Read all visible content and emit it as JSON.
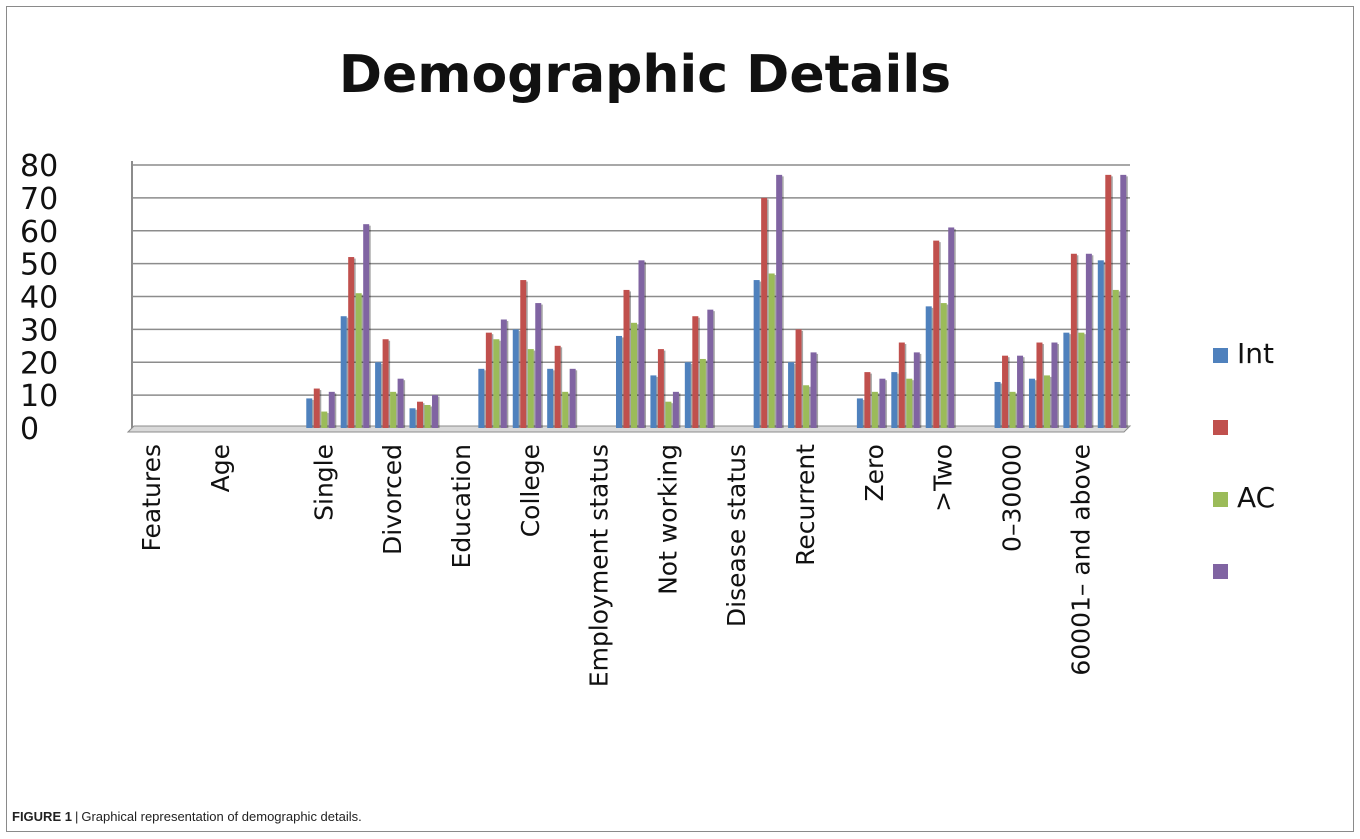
{
  "caption": {
    "label": "FIGURE 1",
    "separator": "|",
    "text": "Graphical representation of demographic details."
  },
  "chart_data": {
    "type": "bar",
    "title": "Demographic Details",
    "xlabel": "",
    "ylabel": "",
    "ylim": [
      0,
      80
    ],
    "yticks": [
      0,
      10,
      20,
      30,
      40,
      50,
      60,
      70,
      80
    ],
    "grid": true,
    "legend_position": "right",
    "categories": [
      "Features",
      "",
      "Age",
      "",
      "",
      "Single",
      "",
      "Divorced",
      "",
      "Education",
      "",
      "College",
      "",
      "Employment status",
      "",
      "Not working",
      "",
      "Disease status",
      "",
      "Recurrent",
      "",
      "Zero",
      "",
      ">Two",
      "",
      "0–30000",
      "",
      "60001– and above",
      ""
    ],
    "series": [
      {
        "name": "Int",
        "color": "#4f81bd",
        "values": [
          0,
          0,
          0,
          0,
          0,
          9,
          34,
          20,
          6,
          0,
          18,
          30,
          18,
          0,
          28,
          16,
          20,
          0,
          45,
          20,
          0,
          9,
          17,
          37,
          0,
          14,
          15,
          29,
          51
        ]
      },
      {
        "name": "",
        "color": "#c0504d",
        "values": [
          0,
          0,
          0,
          0,
          0,
          12,
          52,
          27,
          8,
          0,
          29,
          45,
          25,
          0,
          42,
          24,
          34,
          0,
          70,
          30,
          0,
          17,
          26,
          57,
          0,
          22,
          26,
          53,
          77
        ]
      },
      {
        "name": "AC",
        "color": "#9bbb59",
        "values": [
          0,
          0,
          0,
          0,
          0,
          5,
          41,
          11,
          7,
          0,
          27,
          24,
          11,
          0,
          32,
          8,
          21,
          0,
          47,
          13,
          0,
          11,
          15,
          38,
          0,
          11,
          16,
          29,
          42
        ]
      },
      {
        "name": "",
        "color": "#8064a2",
        "values": [
          0,
          0,
          0,
          0,
          0,
          11,
          62,
          15,
          10,
          0,
          33,
          38,
          18,
          0,
          51,
          11,
          36,
          0,
          77,
          23,
          0,
          15,
          23,
          61,
          0,
          22,
          26,
          53,
          77
        ]
      }
    ]
  }
}
